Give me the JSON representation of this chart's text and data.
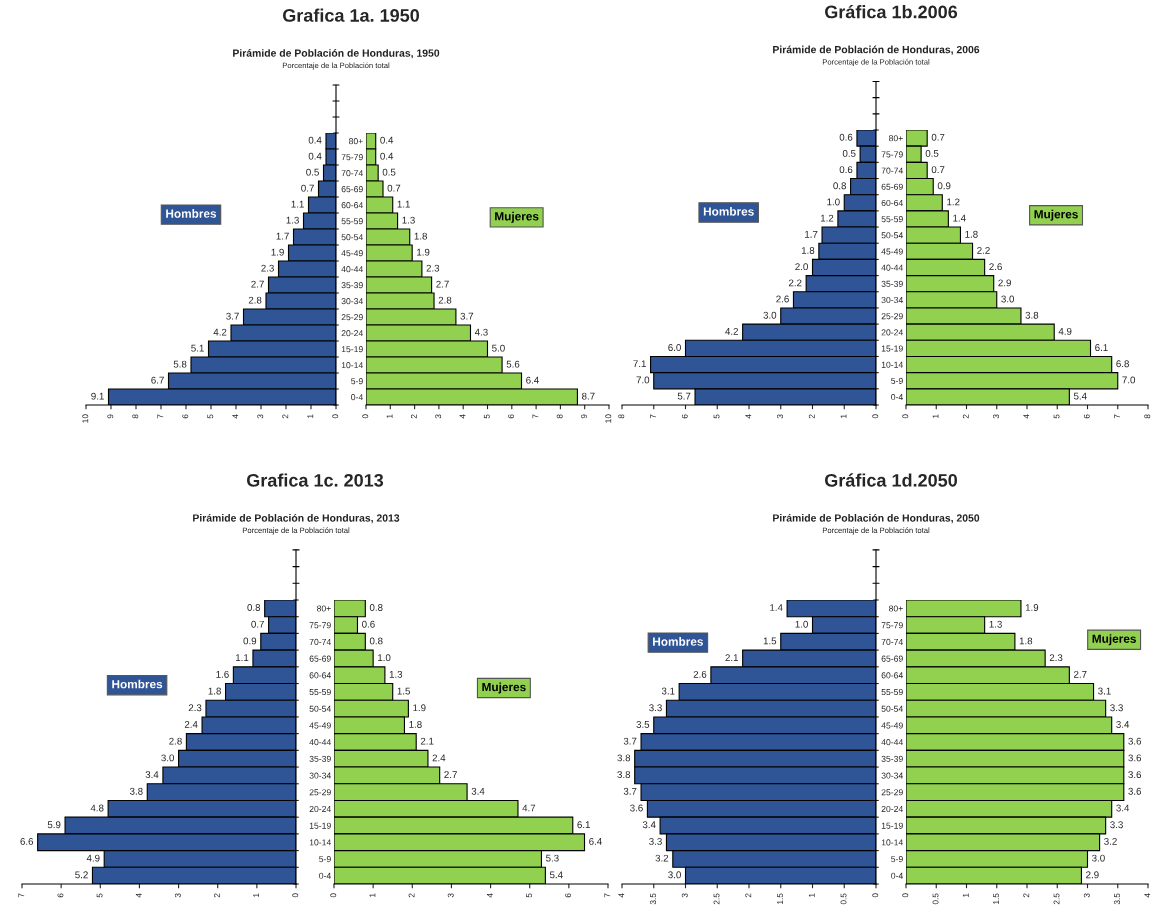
{
  "chart_data": [
    {
      "type": "bar",
      "orientation": "horizontal",
      "title": "Pirámide de Población de Honduras, 1950",
      "subtitle": "Porcentaje de la Población total",
      "annotations": [
        "Grafica 1a. 1950"
      ],
      "categories": [
        null,
        null,
        null,
        null,
        null,
        null,
        null,
        null,
        null,
        null,
        null,
        null,
        null,
        null,
        null,
        null,
        null
      ],
      "series": [
        {
          "name": "Hombres",
          "color": "#2f5597",
          "values": [
            0.4,
            0.4,
            0.5,
            0.7,
            1.1,
            1.3,
            1.7,
            1.9,
            2.3,
            2.7,
            2.8,
            3.7,
            4.2,
            5.1,
            5.8,
            6.7,
            9.1
          ],
          "value_labels": [
            "0.4",
            "0.4",
            "0.5",
            "0.7",
            "1.1",
            "1.3",
            "1.7",
            "1.9",
            "2.3",
            "2.7",
            "2.8",
            "3.7",
            "4.2",
            "5.1",
            "5.8",
            "6.7",
            "9.1"
          ]
        }
      ],
      "xlim": [
        10,
        0
      ],
      "xticks": [
        0,
        1,
        2,
        3,
        4,
        5,
        6,
        7,
        8,
        9,
        10
      ],
      "tick_labels": "x",
      "legend": "left",
      "grid": false
    },
    {
      "type": "bar",
      "orientation": "horizontal",
      "categories": [
        "80+",
        "75-79",
        "70-74",
        "65-69",
        "60-64",
        "55-59",
        "50-54",
        "45-49",
        "40-44",
        "35-39",
        "30-34",
        "25-29",
        "20-24",
        "15-19",
        "10-14",
        "5-9",
        "0-4"
      ],
      "series": [
        {
          "name": "Mujeres",
          "color": "#92d050",
          "values": [
            0.4,
            0.4,
            0.5,
            0.7,
            1.1,
            1.3,
            1.8,
            1.9,
            2.3,
            2.7,
            2.8,
            3.7,
            4.3,
            5.0,
            5.6,
            6.4,
            8.7
          ],
          "value_labels": [
            "0.4",
            "0.4",
            "0.5",
            "0.7",
            "1.1",
            "1.3",
            "1.8",
            "1.9",
            "2.3",
            "2.7",
            "2.8",
            "3.7",
            "4.3",
            "5.0",
            "5.6",
            "6.4",
            "8.7"
          ]
        }
      ],
      "xlim": [
        0,
        10
      ],
      "xticks": [
        0,
        1,
        2,
        3,
        4,
        5,
        6,
        7,
        8,
        9,
        10
      ],
      "legend": "right",
      "grid": false
    },
    {
      "type": "bar",
      "orientation": "horizontal",
      "title": "Pirámide de Población de Honduras, 2006",
      "subtitle": "Porcentaje de la Población total",
      "annotations": [
        "Gráfica 1b.2006"
      ],
      "categories": [
        null,
        null,
        null,
        null,
        null,
        null,
        null,
        null,
        null,
        null,
        null,
        null,
        null,
        null,
        null,
        null,
        null
      ],
      "series": [
        {
          "name": "Hombres",
          "color": "#2f5597",
          "values": [
            0.6,
            0.5,
            0.6,
            0.8,
            1.0,
            1.2,
            1.7,
            1.8,
            2.0,
            2.2,
            2.6,
            3.0,
            4.2,
            6.0,
            7.1,
            7.0,
            5.7
          ],
          "value_labels": [
            "0.6",
            "0.5",
            "0.6",
            "0.8",
            "1.0",
            "1.2",
            "1.7",
            "1.8",
            "2.0",
            "2.2",
            "2.6",
            "3.0",
            "4.2",
            "6.0",
            "7.1",
            "7.0",
            "5.7"
          ]
        }
      ],
      "xlim": [
        8,
        0
      ],
      "xticks": [
        0,
        1,
        2,
        3,
        4,
        5,
        6,
        7,
        8
      ],
      "tick_labels": "x",
      "legend": "left",
      "grid": false
    },
    {
      "type": "bar",
      "orientation": "horizontal",
      "categories": [
        "80+",
        "75-79",
        "70-74",
        "65-69",
        "60-64",
        "55-59",
        "50-54",
        "45-49",
        "40-44",
        "35-39",
        "30-34",
        "25-29",
        "20-24",
        "15-19",
        "10-14",
        "5-9",
        "0-4"
      ],
      "series": [
        {
          "name": "Mujeres",
          "color": "#92d050",
          "values": [
            0.7,
            0.5,
            0.7,
            0.9,
            1.2,
            1.4,
            1.8,
            2.2,
            2.6,
            2.9,
            3.0,
            3.8,
            4.9,
            6.1,
            6.8,
            7.0,
            5.4
          ],
          "value_labels": [
            "0.7",
            "0.5",
            "0.7",
            "0.9",
            "1.2",
            "1.4",
            "1.8",
            "2.2",
            "2.6",
            "2.9",
            "3.0",
            "3.8",
            "4.9",
            "6.1",
            "6.8",
            "7.0",
            "5.4"
          ]
        }
      ],
      "xlim": [
        0,
        8
      ],
      "xticks": [
        0,
        1,
        2,
        3,
        4,
        5,
        6,
        7,
        8
      ],
      "legend": "right",
      "grid": false
    },
    {
      "type": "bar",
      "orientation": "horizontal",
      "title": "Pirámide de Población de Honduras, 2013",
      "subtitle": "Porcentaje de la Población total",
      "annotations": [
        "Grafica 1c. 2013"
      ],
      "categories": [
        null,
        null,
        null,
        null,
        null,
        null,
        null,
        null,
        null,
        null,
        null,
        null,
        null,
        null,
        null,
        null,
        null
      ],
      "series": [
        {
          "name": "Hombres",
          "color": "#2f5597",
          "values": [
            0.8,
            0.7,
            0.9,
            1.1,
            1.6,
            1.8,
            2.3,
            2.4,
            2.8,
            3.0,
            3.4,
            3.8,
            4.8,
            5.9,
            6.6,
            4.9,
            5.2
          ],
          "value_labels": [
            "0.8",
            "0.7",
            "0.9",
            "1.1",
            "1.6",
            "1.8",
            "2.3",
            "2.4",
            "2.8",
            "3.0",
            "3.4",
            "3.8",
            "4.8",
            "5.9",
            "6.6",
            "4.9",
            "5.2"
          ]
        }
      ],
      "xlim": [
        7,
        0
      ],
      "xticks": [
        0,
        1,
        2,
        3,
        4,
        5,
        6,
        7
      ],
      "tick_labels": "x",
      "legend": "left",
      "grid": false
    },
    {
      "type": "bar",
      "orientation": "horizontal",
      "categories": [
        "80+",
        "75-79",
        "70-74",
        "65-69",
        "60-64",
        "55-59",
        "50-54",
        "45-49",
        "40-44",
        "35-39",
        "30-34",
        "25-29",
        "20-24",
        "15-19",
        "10-14",
        "5-9",
        "0-4"
      ],
      "series": [
        {
          "name": "Mujeres",
          "color": "#92d050",
          "values": [
            0.8,
            0.6,
            0.8,
            1.0,
            1.3,
            1.5,
            1.9,
            1.8,
            2.1,
            2.4,
            2.7,
            3.4,
            4.7,
            6.1,
            6.4,
            5.3,
            5.4
          ],
          "value_labels": [
            "0.8",
            "0.6",
            "0.8",
            "1.0",
            "1.3",
            "1.5",
            "1.9",
            "1.8",
            "2.1",
            "2.4",
            "2.7",
            "3.4",
            "4.7",
            "6.1",
            "6.4",
            "5.3",
            "5.4"
          ]
        }
      ],
      "xlim": [
        0,
        7
      ],
      "xticks": [
        0,
        1,
        2,
        3,
        4,
        5,
        6,
        7
      ],
      "legend": "right",
      "grid": false
    },
    {
      "type": "bar",
      "orientation": "horizontal",
      "title": "Pirámide de Población de Honduras, 2050",
      "subtitle": "Porcentaje de la Población total",
      "annotations": [
        "Gráfica 1d.2050"
      ],
      "categories": [
        null,
        null,
        null,
        null,
        null,
        null,
        null,
        null,
        null,
        null,
        null,
        null,
        null,
        null,
        null,
        null,
        null
      ],
      "series": [
        {
          "name": "Hombres",
          "color": "#2f5597",
          "values": [
            1.4,
            1.0,
            1.5,
            2.1,
            2.6,
            3.1,
            3.3,
            3.5,
            3.7,
            3.8,
            3.8,
            3.7,
            3.6,
            3.4,
            3.3,
            3.2,
            3.0
          ],
          "value_labels": [
            "1.4",
            "1.0",
            "1.5",
            "2.1",
            "2.6",
            "3.1",
            "3.3",
            "3.5",
            "3.7",
            "3.8",
            "3.8",
            "3.7",
            "3.6",
            "3.4",
            "3.3",
            "3.2",
            "3.0"
          ]
        }
      ],
      "xlim": [
        4,
        0
      ],
      "xticks": [
        0,
        0.5,
        1,
        1.5,
        2,
        2.5,
        3,
        3.5,
        4
      ],
      "tick_labels": "x",
      "legend": "upper left",
      "grid": false
    },
    {
      "type": "bar",
      "orientation": "horizontal",
      "categories": [
        "80+",
        "75-79",
        "70-74",
        "65-69",
        "60-64",
        "55-59",
        "50-54",
        "45-49",
        "40-44",
        "35-39",
        "30-34",
        "25-29",
        "20-24",
        "15-19",
        "10-14",
        "5-9",
        "0-4"
      ],
      "series": [
        {
          "name": "Mujeres",
          "color": "#92d050",
          "values": [
            1.9,
            1.3,
            1.8,
            2.3,
            2.7,
            3.1,
            3.3,
            3.4,
            3.6,
            3.6,
            3.6,
            3.6,
            3.4,
            3.3,
            3.2,
            3.0,
            2.9
          ],
          "value_labels": [
            "1.9",
            "1.3",
            "1.8",
            "2.3",
            "2.7",
            "3.1",
            "3.3",
            "3.4",
            "3.6",
            "3.6",
            "3.6",
            "3.6",
            "3.4",
            "3.3",
            "3.2",
            "3.0",
            "2.9"
          ]
        }
      ],
      "xlim": [
        0,
        4
      ],
      "xticks": [
        0,
        0.5,
        1,
        1.5,
        2,
        2.5,
        3,
        3.5,
        4
      ],
      "legend": "upper right",
      "grid": false
    }
  ]
}
